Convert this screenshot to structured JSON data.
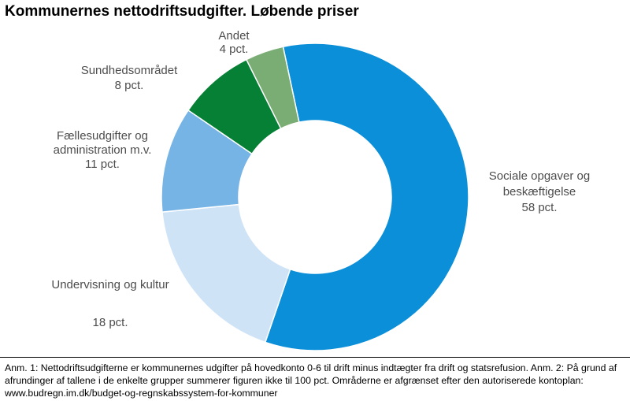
{
  "chart_data": {
    "type": "pie",
    "variant": "donut",
    "title": "Kommunernes nettodriftsudgifter. Løbende priser",
    "slices": [
      {
        "label_lines": [
          "Sociale opgaver og",
          "beskæftigelse",
          "58 pct."
        ],
        "value": 58,
        "color": "#0a8fd8"
      },
      {
        "label_lines": [
          "Undervisning og kultur",
          "",
          "18 pct."
        ],
        "value": 18,
        "color": "#cfe3f7"
      },
      {
        "label_lines": [
          "Fællesudgifter og",
          "administration m.v.",
          "11 pct."
        ],
        "value": 11,
        "color": "#76b4e6"
      },
      {
        "label_lines": [
          "Sundhedsområdet",
          "8 pct."
        ],
        "value": 8,
        "color": "#068034"
      },
      {
        "label_lines": [
          "Andet",
          "4 pct."
        ],
        "value": 4,
        "color": "#7aad74"
      }
    ]
  },
  "note": "Anm. 1: Nettodriftsudgifterne er kommunernes udgifter på hovedkonto 0-6 til drift minus indtægter fra drift og statsrefusion. Anm. 2: På grund af afrundinger af tallene i de enkelte grupper summerer figuren ikke til 100 pct. Områderne er afgrænset efter den autoriserede kontoplan: www.budregn.im.dk/budget-og-regnskabssystem-for-kommuner"
}
